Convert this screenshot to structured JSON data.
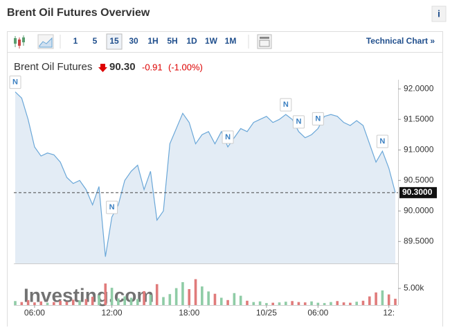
{
  "header": {
    "title": "Brent Oil Futures Overview",
    "info_icon": "i"
  },
  "toolbar": {
    "intervals": [
      "1",
      "5",
      "15",
      "30",
      "1H",
      "5H",
      "1D",
      "1W",
      "1M"
    ],
    "selected_index": 2,
    "link": "Technical Chart »"
  },
  "chart_data": {
    "type": "line",
    "instrument": "Brent Oil Futures",
    "last": "90.30",
    "change": "-0.91",
    "change_pct": "(-1.00%)",
    "watermark": "Investing.com",
    "categories": [
      null,
      null,
      null,
      "06:00",
      null,
      null,
      null,
      null,
      null,
      null,
      null,
      null,
      null,
      null,
      null,
      "12:00",
      null,
      null,
      null,
      null,
      null,
      null,
      null,
      null,
      null,
      null,
      null,
      "18:00",
      null,
      null,
      null,
      null,
      null,
      null,
      null,
      null,
      null,
      null,
      null,
      "10/25",
      null,
      null,
      null,
      null,
      null,
      null,
      null,
      "06:00",
      null,
      null,
      null,
      null,
      null,
      null,
      null,
      null,
      null,
      null,
      "12:",
      null
    ],
    "series": [
      {
        "name": "Brent Oil Futures",
        "color": "#6aa7d8",
        "fill": "#e3ecf5",
        "values": [
          91.95,
          91.85,
          91.5,
          91.05,
          90.9,
          90.95,
          90.92,
          90.8,
          90.55,
          90.45,
          90.5,
          90.35,
          90.1,
          90.4,
          89.25,
          89.9,
          90.1,
          90.5,
          90.65,
          90.75,
          90.35,
          90.65,
          89.85,
          90.0,
          91.1,
          91.35,
          91.6,
          91.45,
          91.1,
          91.25,
          91.3,
          91.1,
          91.3,
          91.05,
          91.2,
          91.35,
          91.3,
          91.45,
          91.5,
          91.55,
          91.45,
          91.5,
          91.58,
          91.5,
          91.3,
          91.2,
          91.25,
          91.35,
          91.55,
          91.58,
          91.55,
          91.45,
          91.4,
          91.48,
          91.4,
          91.1,
          90.8,
          90.98,
          90.7,
          90.3
        ]
      }
    ],
    "ylim": [
      89.14,
      92.15
    ],
    "yticks": [
      {
        "value": 92,
        "label": "92.0000"
      },
      {
        "value": 91.5,
        "label": "91.5000"
      },
      {
        "value": 91,
        "label": "91.0000"
      },
      {
        "value": 90.5,
        "label": "90.5000"
      },
      {
        "value": 90,
        "label": "90.0000"
      },
      {
        "value": 89.5,
        "label": "89.5000"
      }
    ],
    "last_price_line": {
      "value": 90.3,
      "label": "90.3000"
    },
    "news_markers": [
      {
        "index": 0,
        "text": "N"
      },
      {
        "index": 15,
        "text": "N"
      },
      {
        "index": 33,
        "text": "N"
      },
      {
        "index": 42,
        "text": "N"
      },
      {
        "index": 44,
        "text": "N"
      },
      {
        "index": 47,
        "text": "N"
      },
      {
        "index": 57,
        "text": "N"
      }
    ],
    "volume": {
      "up_color": "#8fcca6",
      "down_color": "#e07b7b",
      "values": [
        1200,
        900,
        1500,
        800,
        1100,
        700,
        900,
        1300,
        1000,
        1600,
        1400,
        1800,
        2500,
        3000,
        6500,
        5200,
        2000,
        2600,
        2200,
        1800,
        4200,
        3100,
        6300,
        2400,
        3300,
        5100,
        6900,
        4800,
        7800,
        5600,
        4100,
        3400,
        2200,
        1500,
        3600,
        2800,
        1300,
        900,
        1100,
        600,
        700,
        800,
        1000,
        1200,
        900,
        800,
        1100,
        700,
        600,
        900,
        1200,
        800,
        700,
        1000,
        1300,
        2600,
        3800,
        4400,
        3200,
        1900
      ],
      "ylim": [
        0,
        9400
      ],
      "yticks": [
        {
          "value": 5000,
          "label": "5.00k"
        }
      ]
    }
  }
}
